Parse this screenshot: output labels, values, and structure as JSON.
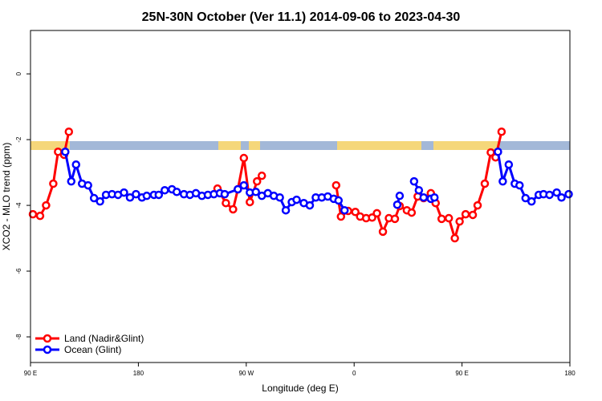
{
  "chart_data": {
    "type": "line",
    "title": "25N-30N October (Ver 11.1)   2014-09-06 to 2023-04-30",
    "xlabel": "Longitude (deg E)",
    "ylabel": "XCO2 - MLO trend (ppm)",
    "xlim": [
      90,
      540
    ],
    "xticks": [
      {
        "value": 90,
        "label": "90 E"
      },
      180,
      {
        "value": 270,
        "label": "90 W"
      },
      {
        "value": 360,
        "label": "0"
      },
      {
        "value": 450,
        "label": "90 E"
      },
      {
        "value": 540,
        "label": "180"
      }
    ],
    "ylim": [
      -8.78,
      1.32
    ],
    "yticks": [
      -8,
      -6,
      -4,
      -2,
      0
    ],
    "legend": "bottom-left",
    "series": [
      {
        "name": "Land (Nadir&Glint)",
        "color": "#ff0000",
        "x": [
          92,
          98,
          103,
          109,
          113,
          118,
          122,
          200,
          246,
          253,
          259,
          263,
          268,
          273,
          279,
          283,
          320,
          345,
          349,
          355,
          361,
          365,
          370,
          375,
          379,
          384,
          389,
          394,
          398,
          404,
          408,
          413,
          418,
          424,
          428,
          433,
          439,
          444,
          448,
          453,
          459,
          463,
          469,
          474,
          478,
          483
        ],
        "values": [
          -4.27,
          -4.32,
          -4.0,
          -3.34,
          -2.37,
          -2.46,
          -1.76,
          null,
          -3.49,
          -3.93,
          -4.12,
          -3.51,
          -2.56,
          -3.9,
          -3.27,
          -3.1,
          null,
          -3.39,
          -4.34,
          -4.17,
          -4.2,
          -4.34,
          -4.39,
          -4.37,
          -4.24,
          -4.8,
          -4.39,
          -4.41,
          -4.02,
          -4.15,
          -4.22,
          -3.73,
          -3.78,
          -3.63,
          -3.93,
          -4.41,
          -4.39,
          -5.0,
          -4.49,
          -4.27,
          -4.29,
          -4.0,
          -3.34,
          -2.39,
          -2.54,
          -1.76
        ]
      },
      {
        "name": "Ocean (Glint)",
        "color": "#0000ff",
        "x": [
          119,
          124,
          128,
          133,
          138,
          143,
          148,
          153,
          158,
          163,
          168,
          173,
          178,
          183,
          187,
          193,
          197,
          202,
          208,
          212,
          218,
          223,
          228,
          233,
          238,
          243,
          248,
          252,
          263,
          268,
          273,
          278,
          283,
          288,
          293,
          298,
          303,
          308,
          312,
          318,
          323,
          328,
          333,
          338,
          343,
          347,
          352,
          370,
          396,
          398,
          402,
          410,
          414,
          418,
          424,
          427,
          450,
          480,
          484,
          489,
          494,
          498,
          503,
          508,
          514,
          518,
          523,
          529,
          533,
          539
        ],
        "values": [
          -2.37,
          -3.27,
          -2.76,
          -3.34,
          -3.39,
          -3.78,
          -3.88,
          -3.68,
          -3.66,
          -3.68,
          -3.61,
          -3.76,
          -3.66,
          -3.76,
          -3.71,
          -3.68,
          -3.68,
          -3.54,
          -3.51,
          -3.59,
          -3.66,
          -3.68,
          -3.63,
          -3.71,
          -3.68,
          -3.66,
          -3.63,
          -3.66,
          -3.51,
          -3.39,
          -3.61,
          -3.59,
          -3.71,
          -3.63,
          -3.71,
          -3.76,
          -4.15,
          -3.9,
          -3.83,
          -3.93,
          -4.0,
          -3.76,
          -3.76,
          -3.73,
          -3.8,
          -3.85,
          -4.15,
          null,
          -3.98,
          -3.71,
          null,
          -3.27,
          -3.54,
          -3.76,
          -3.8,
          -3.76,
          null,
          -2.37,
          -3.27,
          -2.76,
          -3.34,
          -3.39,
          -3.78,
          -3.88,
          -3.68,
          -3.66,
          -3.68,
          -3.61,
          -3.76,
          -3.66
        ]
      }
    ]
  }
}
